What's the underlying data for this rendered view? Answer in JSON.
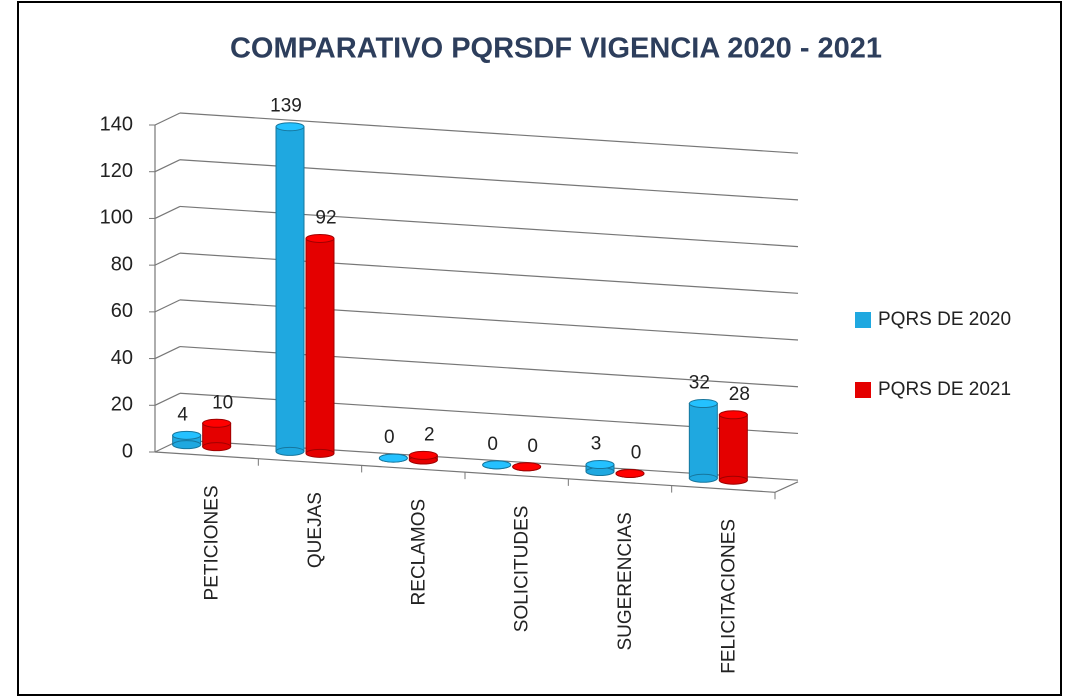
{
  "chart_data": {
    "type": "bar3d",
    "title": "COMPARATIVO PQRSDF VIGENCIA 2020 - 2021",
    "categories": [
      "PETICIONES",
      "QUEJAS",
      "RECLAMOS",
      "SOLICITUDES",
      "SUGERENCIAS",
      "FELICITACIONES"
    ],
    "series": [
      {
        "name": "PQRS DE 2020",
        "color": "#1fa8e0",
        "values": [
          4,
          139,
          0,
          0,
          3,
          32
        ]
      },
      {
        "name": "PQRS DE 2021",
        "color": "#e40000",
        "values": [
          10,
          92,
          2,
          0,
          0,
          28
        ]
      }
    ],
    "ylim": [
      0,
      140
    ],
    "yticks": [
      0,
      20,
      40,
      60,
      80,
      100,
      120,
      140
    ],
    "grid": true,
    "legend": "right"
  }
}
